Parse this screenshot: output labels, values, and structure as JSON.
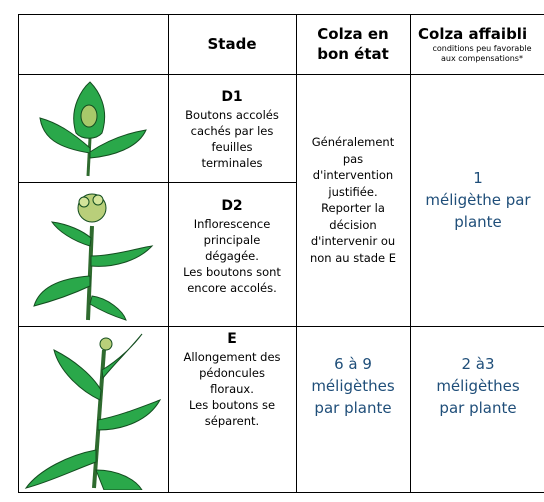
{
  "table": {
    "headers": {
      "stage": "Stade",
      "good": [
        "Colza en",
        "bon état"
      ],
      "weak": "Colza affaibli",
      "weak_note": [
        "conditions peu favorable",
        "aux compensations*"
      ]
    },
    "rows": [
      {
        "stage": "D1",
        "description": [
          "Boutons accolés",
          "cachés par les",
          "feuilles",
          "terminales"
        ]
      },
      {
        "stage": "D2",
        "description": [
          "Inflorescence",
          "principale",
          "dégagée.",
          "Les boutons sont",
          "encore accolés."
        ]
      },
      {
        "stage": "E",
        "description": [
          "Allongement des",
          "pédoncules",
          "floraux.",
          "Les boutons se",
          "séparent."
        ]
      }
    ],
    "good_D": [
      "Généralement",
      "pas",
      "d'intervention",
      "justifiée.",
      "Reporter la",
      "décision",
      "d'intervenir ou",
      "non au stade E"
    ],
    "weak_D": [
      "1",
      "méligèthe par",
      "plante"
    ],
    "good_E": [
      "6 à 9",
      "méligèthes",
      "par plante"
    ],
    "weak_E": [
      "2 à3",
      "méligèthes",
      "par plante"
    ]
  }
}
